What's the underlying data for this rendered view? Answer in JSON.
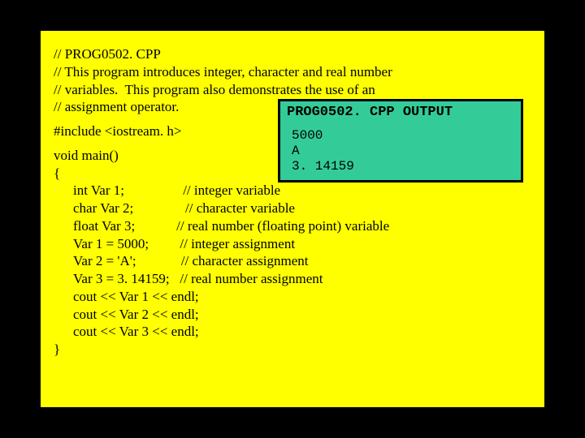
{
  "colors": {
    "page_bg": "#000000",
    "frame_bg": "#ffff00",
    "frame_border": "#000000",
    "output_bg": "#33cc99",
    "output_border": "#000000",
    "text": "#000000"
  },
  "typography": {
    "code_font": "Times New Roman",
    "code_fontsize": 17,
    "output_font": "Courier New",
    "output_fontsize": 16,
    "output_title_fontsize": 17,
    "output_title_weight": "bold"
  },
  "code": {
    "c1": "// PROG0502. CPP",
    "c2": "// This program introduces integer, character and real number",
    "c3": "// variables.  This program also demonstrates the use of an",
    "c4": "// assignment operator.",
    "c5": "#include <iostream. h>",
    "c6": "void main()",
    "c7": "{",
    "c8": "int Var 1;                 // integer variable",
    "c9": "char Var 2;               // character variable",
    "c10": "float Var 3;            // real number (floating point) variable",
    "c11": "Var 1 = 5000;         // integer assignment",
    "c12": "Var 2 = 'A';             // character assignment",
    "c13": "Var 3 = 3. 14159;   // real number assignment",
    "c14": "cout << Var 1 << endl;",
    "c15": "cout << Var 2 << endl;",
    "c16": "cout << Var 3 << endl;",
    "c17": "}"
  },
  "output": {
    "title": "PROG0502. CPP  OUTPUT",
    "l1": "5000",
    "l2": "A",
    "l3": "3. 14159"
  }
}
